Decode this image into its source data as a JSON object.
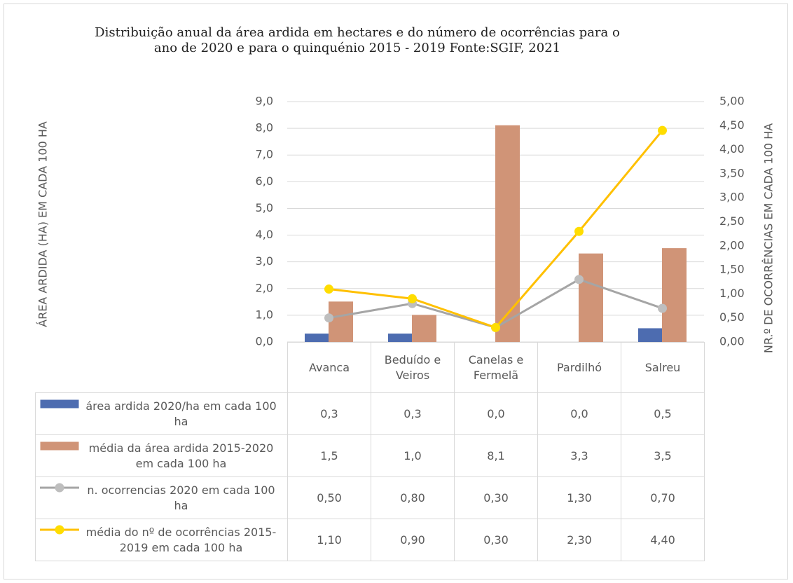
{
  "chart_data": {
    "type": "bar",
    "title": "Distribuição anual da área ardida em hectares e do número de ocorrências para o ano de 2020 e para o quinquénio 2015 - 2019   Fonte:SGIF, 2021",
    "y_label": "ÁREA ARDIDA (HA) EM CADA 100 HA",
    "y2_label": "NR.º DE OCORRÊNCIAS EM CADA 100 HA",
    "categories": [
      "Avanca",
      "Beduído e Veiros",
      "Canelas e Fermelã",
      "Pardilhó",
      "Salreu"
    ],
    "series": [
      {
        "name": "área ardida 2020/ha em cada 100 ha",
        "type": "bar",
        "color": "#5b7fcf",
        "values": [
          0.3,
          0.3,
          0,
          0,
          0.5
        ],
        "value_labels": [
          "0,3",
          "0,3",
          "0,0",
          "0,0",
          "0,5"
        ]
      },
      {
        "name": "média da área ardida 2015-2020 em cada 100 ha",
        "type": "bar",
        "color": "#f5ae8c",
        "values": [
          1.5,
          1.0,
          8.1,
          3.3,
          3.5
        ],
        "value_labels": [
          "1,5",
          "1,0",
          "8,1",
          "3,3",
          "3,5"
        ]
      },
      {
        "name": "n. ocorrencias 2020 em cada 100 ha",
        "type": "line",
        "axis": "y2",
        "color": "#a5a5a5",
        "values": [
          0.5,
          0.8,
          0.3,
          1.3,
          0.7
        ],
        "value_labels": [
          "0,50",
          "0,80",
          "0,30",
          "1,30",
          "0,70"
        ]
      },
      {
        "name": "média do nº de ocorrências 2015-2019 em cada 100 ha",
        "type": "line",
        "axis": "y2",
        "color": "#ffc000",
        "values": [
          1.1,
          0.9,
          0.3,
          2.3,
          4.4
        ],
        "value_labels": [
          "1,10",
          "0,90",
          "0,30",
          "2,30",
          "4,40"
        ]
      }
    ],
    "ylim": [
      0,
      9
    ],
    "yticks": [
      {
        "value": 0,
        "label": "0,0"
      },
      {
        "value": 1,
        "label": "1,0"
      },
      {
        "value": 2,
        "label": "2,0"
      },
      {
        "value": 3,
        "label": "3,0"
      },
      {
        "value": 4,
        "label": "4,0"
      },
      {
        "value": 5,
        "label": "5,0"
      },
      {
        "value": 6,
        "label": "6,0"
      },
      {
        "value": 7,
        "label": "7,0"
      },
      {
        "value": 8,
        "label": "8,0"
      },
      {
        "value": 9,
        "label": "9,0"
      }
    ],
    "y2lim": [
      0,
      5
    ],
    "y2ticks": [
      {
        "value": 0,
        "label": "0,00"
      },
      {
        "value": 0.5,
        "label": "0,50"
      },
      {
        "value": 1,
        "label": "1,00"
      },
      {
        "value": 1.5,
        "label": "1,50"
      },
      {
        "value": 2,
        "label": "2,00"
      },
      {
        "value": 2.5,
        "label": "2,50"
      },
      {
        "value": 3,
        "label": "3,00"
      },
      {
        "value": 3.5,
        "label": "3,50"
      },
      {
        "value": 4,
        "label": "4,00"
      },
      {
        "value": 4.5,
        "label": "4,50"
      },
      {
        "value": 5,
        "label": "5,00"
      }
    ],
    "grid": true
  }
}
